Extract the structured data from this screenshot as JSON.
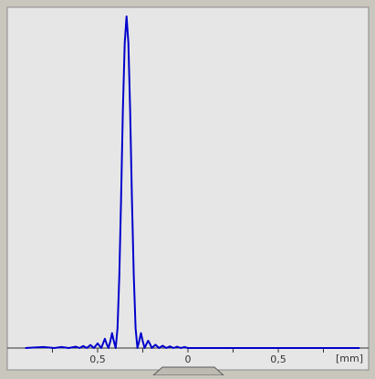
{
  "chart_data": {
    "type": "line",
    "title": "",
    "xlabel": "",
    "ylabel": "",
    "x_unit_label": "[mm]",
    "xlim": [
      -1.0,
      1.0
    ],
    "ylim": [
      0,
      1.0
    ],
    "grid": false,
    "legend": "none",
    "x_ticks": [
      {
        "value": -0.5,
        "label": "0,5"
      },
      {
        "value": 0,
        "label": "0"
      },
      {
        "value": 0.5,
        "label": "0,5"
      }
    ],
    "series": [
      {
        "name": "",
        "color": "#0000cc",
        "x": [
          -0.9,
          -0.8,
          -0.74,
          -0.7,
          -0.66,
          -0.62,
          -0.6,
          -0.58,
          -0.56,
          -0.54,
          -0.52,
          -0.5,
          -0.48,
          -0.46,
          -0.45,
          -0.44,
          -0.43,
          -0.42,
          -0.41,
          -0.4,
          -0.39,
          -0.38,
          -0.37,
          -0.36,
          -0.35,
          -0.34,
          -0.33,
          -0.32,
          -0.31,
          -0.3,
          -0.29,
          -0.28,
          -0.27,
          -0.26,
          -0.25,
          -0.24,
          -0.23,
          -0.22,
          -0.21,
          -0.2,
          -0.18,
          -0.16,
          -0.14,
          -0.12,
          -0.1,
          -0.08,
          -0.06,
          -0.04,
          -0.02,
          0,
          0.1,
          0.2,
          0.4,
          0.6,
          0.8,
          0.95
        ],
        "values": [
          0,
          0.003,
          0,
          0.003,
          0,
          0.004,
          0,
          0.006,
          0,
          0.009,
          0,
          0.014,
          0,
          0.028,
          0.012,
          0,
          0.02,
          0.045,
          0.02,
          0,
          0.06,
          0.22,
          0.45,
          0.72,
          0.92,
          1.0,
          0.92,
          0.72,
          0.45,
          0.22,
          0.06,
          0,
          0.02,
          0.045,
          0.02,
          0,
          0.012,
          0.022,
          0.012,
          0,
          0.01,
          0,
          0.007,
          0,
          0.005,
          0,
          0.004,
          0,
          0.003,
          0,
          0,
          0,
          0,
          0,
          0,
          0
        ]
      }
    ]
  }
}
